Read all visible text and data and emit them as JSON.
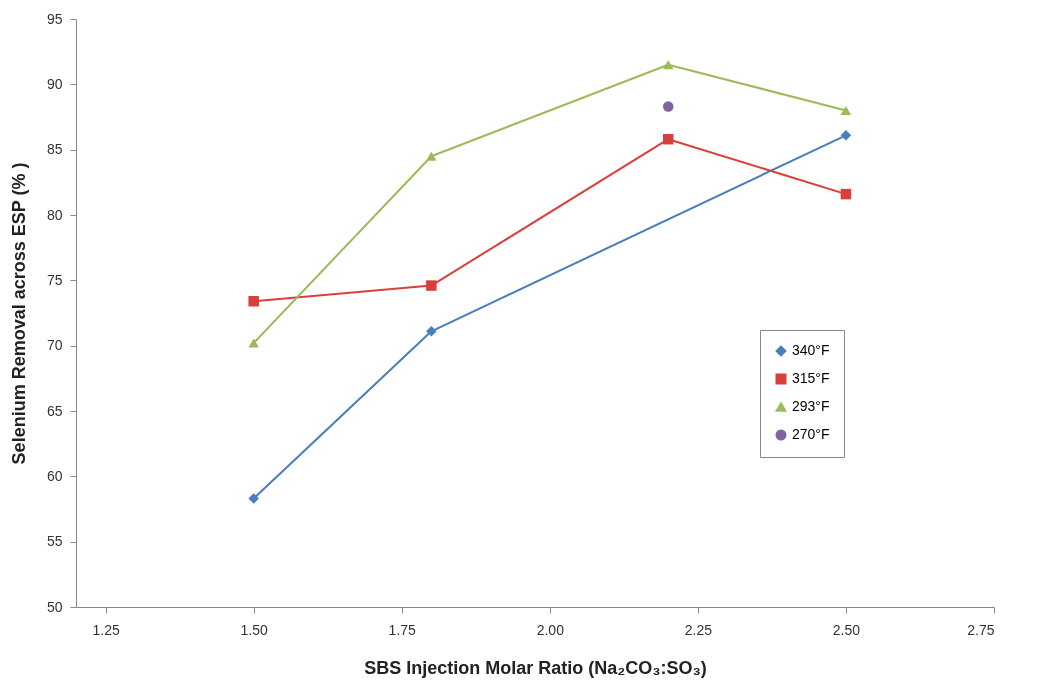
{
  "chart_data": {
    "type": "line",
    "xlabel": "SBS Injection Molar Ratio (Na₂CO₃:SO₃)",
    "ylabel": "Selenium Removal across ESP (% )",
    "x": [
      1.5,
      1.8,
      2.2,
      2.5
    ],
    "series": [
      {
        "name": "340°F",
        "color": "#4a7ebb",
        "marker": "diamond",
        "x": [
          1.5,
          1.8,
          2.5
        ],
        "values": [
          58.3,
          71.1,
          86.1
        ]
      },
      {
        "name": "315°F",
        "color": "#d9403b",
        "marker": "square",
        "values": [
          73.4,
          74.6,
          85.8,
          81.6
        ]
      },
      {
        "name": "293°F",
        "color": "#9bbb59",
        "marker": "triangle",
        "values": [
          70.2,
          84.5,
          91.5,
          88.0
        ]
      },
      {
        "name": "270°F",
        "color": "#8064a2",
        "marker": "circle",
        "type": "scatter",
        "x": [
          2.2
        ],
        "values": [
          88.3
        ]
      }
    ],
    "xlim": [
      1.2,
      2.75
    ],
    "xticks": [
      {
        "value": 1.25,
        "label": "1.25"
      },
      {
        "value": 1.5,
        "label": "1.50"
      },
      {
        "value": 1.75,
        "label": "1.75"
      },
      {
        "value": 2,
        "label": "2.00"
      },
      {
        "value": 2.25,
        "label": "2.25"
      },
      {
        "value": 2.5,
        "label": "2.50"
      },
      {
        "value": 2.75,
        "label": "2.75"
      }
    ],
    "ylim": [
      50,
      95
    ],
    "yticks": [
      50,
      55,
      60,
      65,
      70,
      75,
      80,
      85,
      90,
      95
    ],
    "legend": "bottom right"
  }
}
